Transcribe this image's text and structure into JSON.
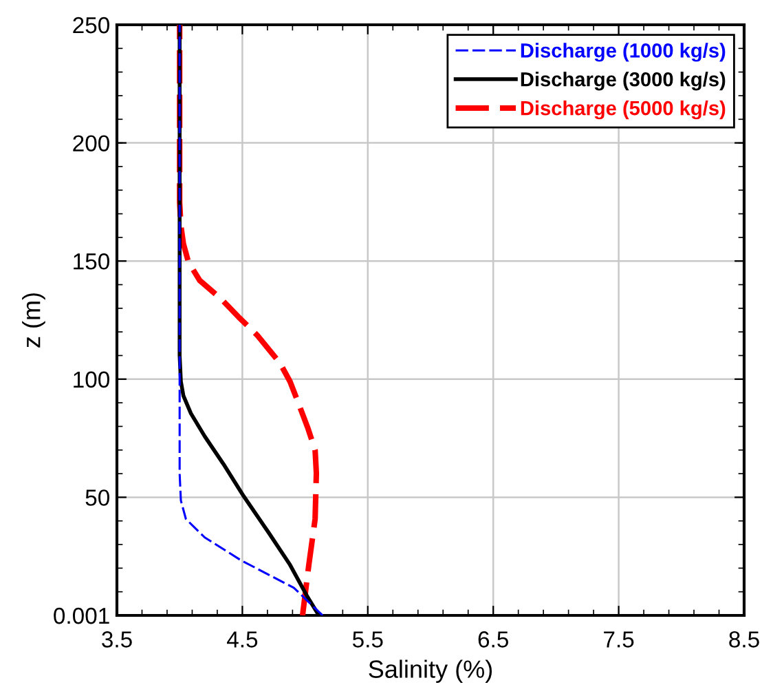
{
  "chart_data": {
    "type": "line",
    "xlabel": "Salinity (%)",
    "ylabel": "z (m)",
    "xlim": [
      3.5,
      8.5
    ],
    "xticks": [
      3.5,
      4.5,
      5.5,
      6.5,
      7.5,
      8.5
    ],
    "ylim": [
      0.001,
      250
    ],
    "yticks": [
      0.001,
      50,
      100,
      150,
      200,
      250
    ],
    "grid": true,
    "legend": "top right",
    "marker": "none",
    "series": [
      {
        "name": "Discharge (1000 kg/s)",
        "color": "#0000ff",
        "line_style": "dashed",
        "x": [
          5.14,
          4.91,
          4.49,
          4.2,
          4.05,
          4.01,
          4.0,
          4.0
        ],
        "values": [
          0.001,
          11.7,
          23.3,
          33,
          40.8,
          48.6,
          60,
          250
        ]
      },
      {
        "name": "Discharge (3000 kg/s)",
        "color": "#000000",
        "line_style": "solid",
        "x": [
          5.11,
          5.02,
          4.88,
          4.71,
          4.51,
          4.35,
          4.2,
          4.09,
          4.03,
          4.01,
          4.0,
          4.0
        ],
        "values": [
          0.001,
          7.8,
          21.4,
          35,
          50.5,
          64,
          75.8,
          85.5,
          93,
          99,
          110,
          250
        ]
      },
      {
        "name": "Discharge (5000 kg/s)",
        "color": "#ff0000",
        "line_style": "dashed",
        "x": [
          4.98,
          5.03,
          5.08,
          5.09,
          5.08,
          5.02,
          4.95,
          4.88,
          4.8,
          4.62,
          4.47,
          4.33,
          4.16,
          4.07,
          4.03,
          4.01,
          4.0,
          4.0
        ],
        "values": [
          0.001,
          21.4,
          40.8,
          60.2,
          70,
          79.6,
          89.4,
          99,
          106.8,
          118.5,
          126.3,
          134,
          141.8,
          149.6,
          157.3,
          165,
          175,
          250
        ]
      }
    ]
  }
}
